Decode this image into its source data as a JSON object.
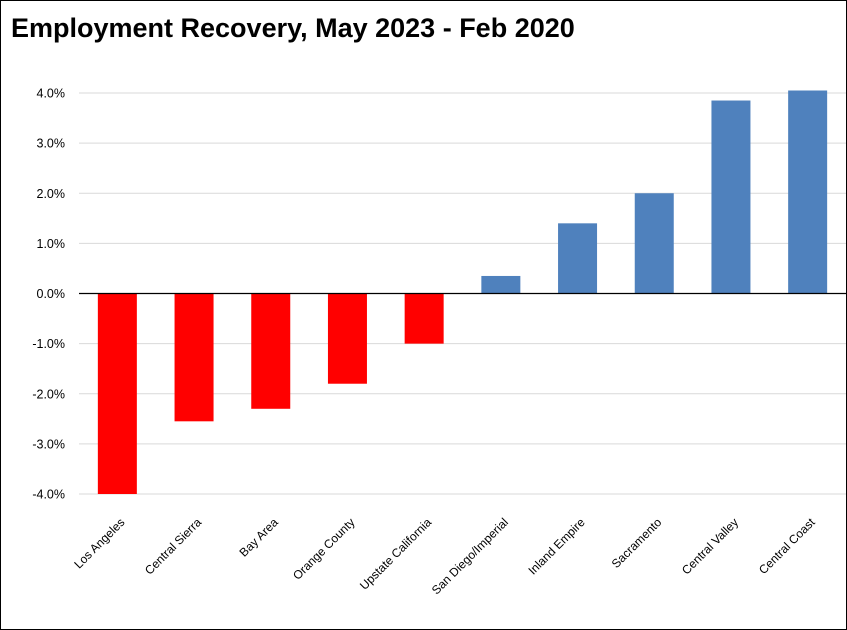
{
  "chart_data": {
    "type": "bar",
    "title": "Employment Recovery, May 2023 - Feb 2020",
    "xlabel": "",
    "ylabel": "",
    "categories": [
      "Los Angeles",
      "Central Sierra",
      "Bay Area",
      "Orange County",
      "Upstate California",
      "San Diego/Imperial",
      "Inland Empire",
      "Sacramento",
      "Central Valley",
      "Central Coast"
    ],
    "values": [
      -4.0,
      -2.55,
      -2.3,
      -1.8,
      -1.0,
      0.35,
      1.4,
      2.0,
      3.85,
      4.05
    ],
    "ylim": [
      -4.0,
      4.0
    ],
    "yticks": [
      4.0,
      3.0,
      2.0,
      1.0,
      0.0,
      -1.0,
      -2.0,
      -3.0,
      -4.0
    ],
    "ytick_labels": [
      "4.0%",
      "3.0%",
      "2.0%",
      "1.0%",
      "0.0%",
      "-1.0%",
      "-2.0%",
      "-3.0%",
      "-4.0%"
    ],
    "grid": "horizontal",
    "legend": "none",
    "colors": {
      "negative": "#ff0000",
      "positive": "#4f81bd",
      "grid": "#d9d9d9",
      "axis": "#000000"
    }
  }
}
